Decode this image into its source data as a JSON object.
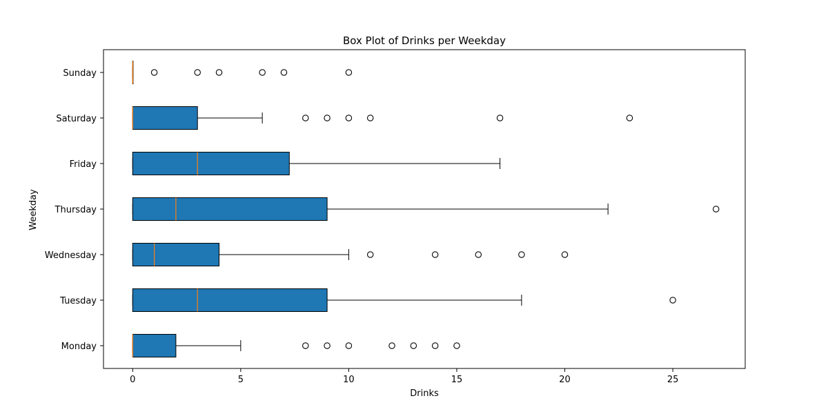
{
  "chart_data": {
    "type": "boxplot",
    "orientation": "horizontal",
    "title": "Box Plot of Drinks per Weekday",
    "xlabel": "Drinks",
    "ylabel": "Weekday",
    "xlim": [
      -1.35,
      28.35
    ],
    "x_ticks": [
      0,
      5,
      10,
      15,
      20,
      25
    ],
    "grid": false,
    "colors": {
      "box_fill": "#1f77b4",
      "median": "#ff7f0e",
      "line": "#000000"
    },
    "categories": [
      "Monday",
      "Tuesday",
      "Wednesday",
      "Thursday",
      "Friday",
      "Saturday",
      "Sunday"
    ],
    "series": [
      {
        "category": "Monday",
        "whislo": 0,
        "q1": 0,
        "med": 0,
        "q3": 2,
        "whishi": 5,
        "fliers": [
          8,
          9,
          10,
          12,
          13,
          14,
          15
        ]
      },
      {
        "category": "Tuesday",
        "whislo": 0,
        "q1": 0,
        "med": 3,
        "q3": 9,
        "whishi": 18,
        "fliers": [
          25
        ]
      },
      {
        "category": "Wednesday",
        "whislo": 0,
        "q1": 0,
        "med": 1,
        "q3": 4,
        "whishi": 10,
        "fliers": [
          11,
          14,
          16,
          18,
          20
        ]
      },
      {
        "category": "Thursday",
        "whislo": 0,
        "q1": 0,
        "med": 2,
        "q3": 9,
        "whishi": 22,
        "fliers": [
          27
        ]
      },
      {
        "category": "Friday",
        "whislo": 0,
        "q1": 0,
        "med": 3,
        "q3": 7.25,
        "whishi": 17,
        "fliers": []
      },
      {
        "category": "Saturday",
        "whislo": 0,
        "q1": 0,
        "med": 0,
        "q3": 3,
        "whishi": 6,
        "fliers": [
          8,
          9,
          10,
          11,
          17,
          23
        ]
      },
      {
        "category": "Sunday",
        "whislo": 0,
        "q1": 0,
        "med": 0,
        "q3": 0,
        "whishi": 0,
        "fliers": [
          1,
          3,
          4,
          6,
          7,
          10
        ]
      }
    ]
  }
}
